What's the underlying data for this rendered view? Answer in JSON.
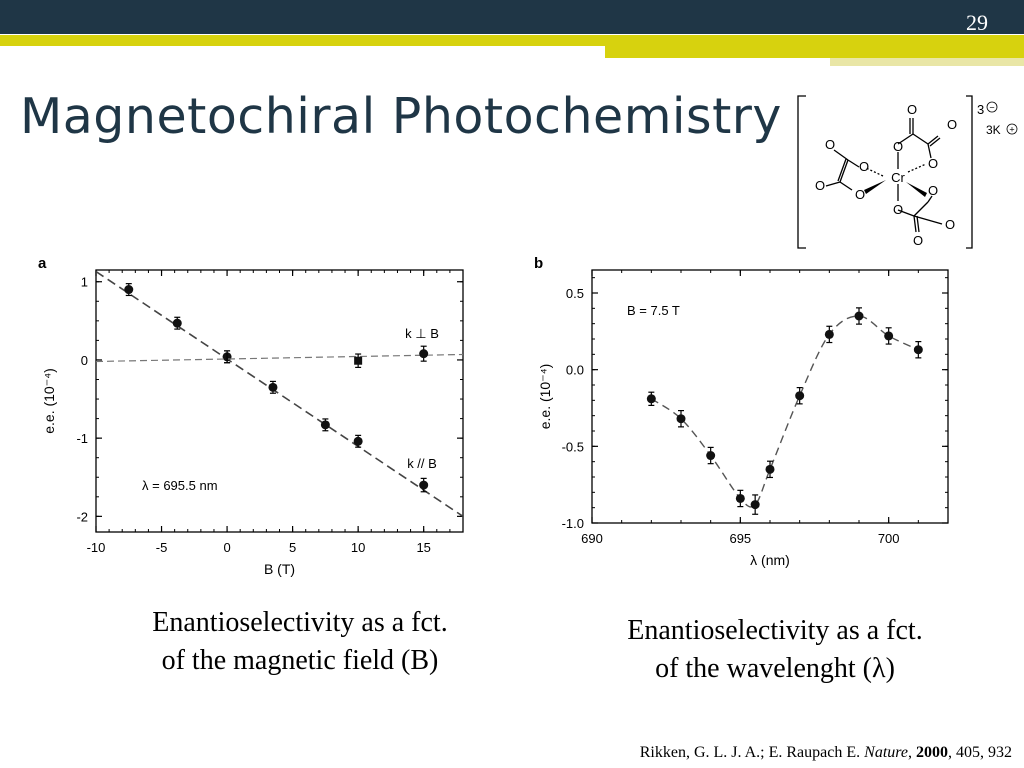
{
  "slide": {
    "page_number": "29",
    "title": "Magnetochiral Photochemistry"
  },
  "molecule": {
    "charge": "3",
    "charge_sign": "−",
    "counterion": "3K",
    "counterion_sign": "+",
    "center_atom": "Cr",
    "oxygen": "O"
  },
  "captions": {
    "a_line1": "Enantioselectivity as a fct.",
    "a_line2": "of the magnetic field (B)",
    "b_line1": "Enantioselectivity as a fct.",
    "b_line2": "of the wavelenght (λ)"
  },
  "reference": {
    "authors": "Rikken, G. L. J. A.; E. Raupach E. ",
    "journal": "Nature",
    "sep": ", ",
    "year": "2000",
    "rest": ", 405, 932"
  },
  "chart_data": [
    {
      "type": "scatter",
      "panel_label": "a",
      "xlabel": "B (T)",
      "ylabel": "e.e. (10⁻⁴)",
      "xlim": [
        -10,
        18
      ],
      "ylim": [
        -2.2,
        1.15
      ],
      "xticks": [
        "-10",
        "-5",
        "0",
        "5",
        "10",
        "15"
      ],
      "xtick_values": [
        -10,
        -5,
        0,
        5,
        10,
        15
      ],
      "yticks": [
        "1",
        "0",
        "-1",
        "-2"
      ],
      "ytick_values": [
        1,
        0,
        -1,
        -2
      ],
      "annotation": "λ = 695.5 nm",
      "series": [
        {
          "name": "k // B",
          "x": [
            -7.5,
            -3.8,
            0,
            3.5,
            7.5,
            10,
            15
          ],
          "y": [
            0.9,
            0.47,
            0.04,
            -0.35,
            -0.83,
            -1.04,
            -1.6
          ],
          "err": [
            0.05,
            0.05,
            0.05,
            0.05,
            0.05,
            0.05,
            0.06
          ],
          "fit": {
            "x": [
              -10,
              18
            ],
            "y": [
              1.13,
              -2.0
            ]
          }
        },
        {
          "name": "k ⊥ B",
          "x": [
            0,
            10,
            15
          ],
          "y": [
            0.04,
            -0.01,
            0.08
          ],
          "err": [
            0.05,
            0.06,
            0.07
          ],
          "fit": {
            "x": [
              -10,
              18
            ],
            "y": [
              -0.02,
              0.07
            ]
          }
        }
      ]
    },
    {
      "type": "line",
      "panel_label": "b",
      "xlabel": "λ (nm)",
      "ylabel": "e.e. (10⁻⁴)",
      "xlim": [
        690,
        702
      ],
      "ylim": [
        -1.0,
        0.65
      ],
      "xticks": [
        "690",
        "695",
        "700"
      ],
      "xtick_values": [
        690,
        695,
        700
      ],
      "yticks": [
        "0.5",
        "0.0",
        "-0.5",
        "-1.0"
      ],
      "ytick_values": [
        0.5,
        0.0,
        -0.5,
        -1.0
      ],
      "annotation": "B = 7.5 T",
      "series": [
        {
          "x": [
            692,
            693,
            694,
            695,
            695.5,
            696,
            697,
            698,
            699,
            700,
            701
          ],
          "y": [
            -0.19,
            -0.32,
            -0.56,
            -0.84,
            -0.88,
            -0.65,
            -0.17,
            0.23,
            0.35,
            0.22,
            0.13
          ],
          "err": [
            0.03,
            0.04,
            0.04,
            0.04,
            0.05,
            0.04,
            0.04,
            0.04,
            0.04,
            0.04,
            0.04
          ]
        }
      ]
    }
  ]
}
